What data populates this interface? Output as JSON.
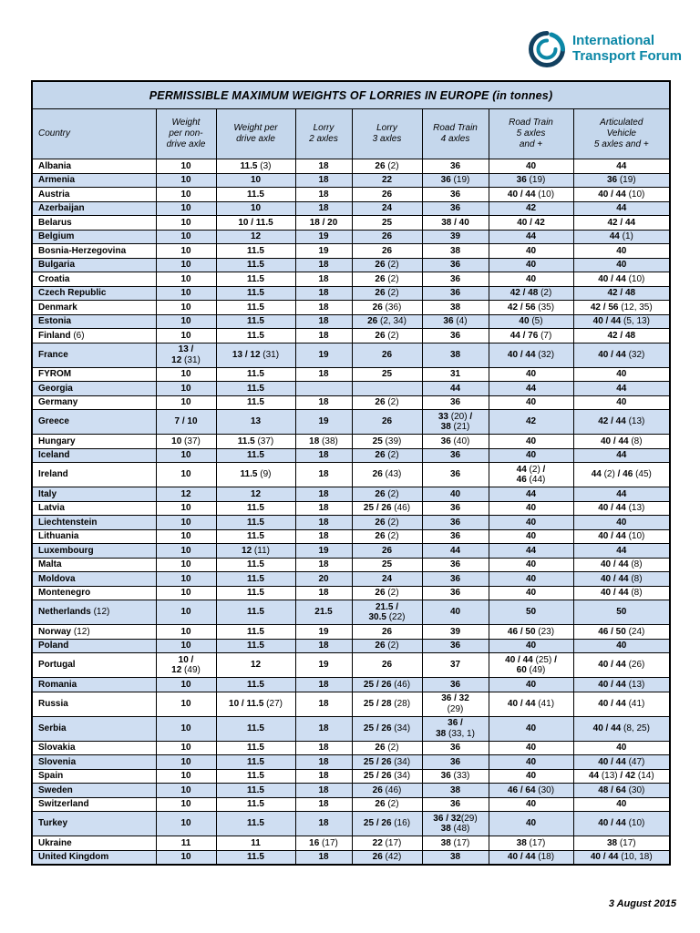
{
  "logo": {
    "line1": "International",
    "line2": "Transport Forum"
  },
  "title": "PERMISSIBLE MAXIMUM WEIGHTS OF LORRIES IN EUROPE  (in tonnes)",
  "date": "3 August 2015",
  "colors": {
    "header_blue": "#c5d7ec",
    "row_blue": "#cfdef2",
    "logo_navy": "#12405f",
    "logo_teal": "#0b87a6"
  },
  "table": {
    "headers": [
      "Country",
      "Weight\nper non-\ndrive axle",
      "Weight per\ndrive axle",
      "Lorry\n2 axles",
      "Lorry\n3 axles",
      "Road Train\n4 axles",
      "Road Train\n5 axles\nand +",
      "Articulated\nVehicle\n5 axles and +"
    ],
    "rows": [
      {
        "country": "Albania",
        "values": [
          "10",
          "11.5 (3)",
          "18",
          "26 (2)",
          "36",
          "40",
          "44"
        ]
      },
      {
        "country": "Armenia",
        "values": [
          "10",
          "10",
          "18",
          "22",
          "36 (19)",
          "36 (19)",
          "36 (19)"
        ]
      },
      {
        "country": "Austria",
        "values": [
          "10",
          "11.5",
          "18",
          "26",
          "36",
          "40 / 44 (10)",
          "40 / 44 (10)"
        ]
      },
      {
        "country": "Azerbaijan",
        "values": [
          "10",
          "10",
          "18",
          "24",
          "36",
          "42",
          "44"
        ]
      },
      {
        "country": "Belarus",
        "values": [
          "10",
          "10 / 11.5",
          "18 / 20",
          "25",
          "38 / 40",
          "40 / 42",
          "42 / 44"
        ]
      },
      {
        "country": "Belgium",
        "values": [
          "10",
          "12",
          "19",
          "26",
          "39",
          "44",
          "44 (1)"
        ]
      },
      {
        "country": "Bosnia-Herzegovina",
        "values": [
          "10",
          "11.5",
          "19",
          "26",
          "38",
          "40",
          "40"
        ]
      },
      {
        "country": "Bulgaria",
        "values": [
          "10",
          "11.5",
          "18",
          "26 (2)",
          "36",
          "40",
          "40"
        ]
      },
      {
        "country": "Croatia",
        "values": [
          "10",
          "11.5",
          "18",
          "26 (2)",
          "36",
          "40",
          "40 / 44 (10)"
        ]
      },
      {
        "country": "Czech Republic",
        "values": [
          "10",
          "11.5",
          "18",
          "26 (2)",
          "36",
          "42 / 48 (2)",
          "42 / 48"
        ]
      },
      {
        "country": "Denmark",
        "values": [
          "10",
          "11.5",
          "18",
          "26 (36)",
          "38",
          "42 / 56 (35)",
          "42 / 56 (12, 35)"
        ]
      },
      {
        "country": "Estonia",
        "values": [
          "10",
          "11.5",
          "18",
          "26 (2, 34)",
          "36 (4)",
          "40 (5)",
          "40 / 44 (5, 13)"
        ]
      },
      {
        "country": "Finland (6)",
        "values": [
          "10",
          "11.5",
          "18",
          "26 (2)",
          "36",
          "44 / 76 (7)",
          "42 / 48"
        ]
      },
      {
        "country": "France",
        "values": [
          "13 /\n12 (31)",
          "13 / 12 (31)",
          "19",
          "26",
          "38",
          "40 / 44 (32)",
          "40 / 44 (32)"
        ]
      },
      {
        "country": "FYROM",
        "values": [
          "10",
          "11.5",
          "18",
          "25",
          "31",
          "40",
          "40"
        ]
      },
      {
        "country": "Georgia",
        "values": [
          "10",
          "11.5",
          "",
          "",
          "44",
          "44",
          "44"
        ]
      },
      {
        "country": "Germany",
        "values": [
          "10",
          "11.5",
          "18",
          "26 (2)",
          "36",
          "40",
          "40"
        ]
      },
      {
        "country": "Greece",
        "values": [
          "7 / 10",
          "13",
          "19",
          "26",
          "33 (20) /\n38 (21)",
          "42",
          "42 / 44 (13)"
        ]
      },
      {
        "country": "Hungary",
        "values": [
          "10 (37)",
          "11.5 (37)",
          "18 (38)",
          "25 (39)",
          "36 (40)",
          "40",
          "40 / 44 (8)"
        ]
      },
      {
        "country": "Iceland",
        "values": [
          "10",
          "11.5",
          "18",
          "26 (2)",
          "36",
          "40",
          "44"
        ]
      },
      {
        "country": "Ireland",
        "values": [
          "10",
          "11.5 (9)",
          "18",
          "26 (43)",
          "36",
          "44 (2) /\n46 (44)",
          "44 (2) / 46 (45)"
        ]
      },
      {
        "country": "Italy",
        "values": [
          "12",
          "12",
          "18",
          "26 (2)",
          "40",
          "44",
          "44"
        ]
      },
      {
        "country": "Latvia",
        "values": [
          "10",
          "11.5",
          "18",
          "25 / 26 (46)",
          "36",
          "40",
          "40 / 44 (13)"
        ]
      },
      {
        "country": "Liechtenstein",
        "values": [
          "10",
          "11.5",
          "18",
          "26 (2)",
          "36",
          "40",
          "40"
        ]
      },
      {
        "country": "Lithuania",
        "values": [
          "10",
          "11.5",
          "18",
          "26 (2)",
          "36",
          "40",
          "40 / 44 (10)"
        ]
      },
      {
        "country": "Luxembourg",
        "values": [
          "10",
          "12 (11)",
          "19",
          "26",
          "44",
          "44",
          "44"
        ]
      },
      {
        "country": "Malta",
        "values": [
          "10",
          "11.5",
          "18",
          "25",
          "36",
          "40",
          "40 / 44 (8)"
        ]
      },
      {
        "country": "Moldova",
        "values": [
          "10",
          "11.5",
          "20",
          "24",
          "36",
          "40",
          "40 / 44 (8)"
        ]
      },
      {
        "country": "Montenegro",
        "values": [
          "10",
          "11.5",
          "18",
          "26 (2)",
          "36",
          "40",
          "40 / 44 (8)"
        ]
      },
      {
        "country": "Netherlands (12)",
        "values": [
          "10",
          "11.5",
          "21.5",
          "21.5 /\n30.5 (22)",
          "40",
          "50",
          "50"
        ]
      },
      {
        "country": "Norway (12)",
        "values": [
          "10",
          "11.5",
          "19",
          "26",
          "39",
          "46 / 50 (23)",
          "46 / 50 (24)"
        ]
      },
      {
        "country": "Poland",
        "values": [
          "10",
          "11.5",
          "18",
          "26 (2)",
          "36",
          "40",
          "40"
        ]
      },
      {
        "country": "Portugal",
        "values": [
          "10 /\n12 (49)",
          "12",
          "19",
          "26",
          "37",
          "40 / 44 (25) /\n60 (49)",
          "40 / 44 (26)"
        ]
      },
      {
        "country": "Romania",
        "values": [
          "10",
          "11.5",
          "18",
          "25 / 26 (46)",
          "36",
          "40",
          "40 / 44 (13)"
        ]
      },
      {
        "country": "Russia",
        "values": [
          "10",
          "10 / 11.5 (27)",
          "18",
          "25 / 28 (28)",
          "36 / 32\n(29)",
          "40 / 44 (41)",
          "40 / 44 (41)"
        ]
      },
      {
        "country": "Serbia",
        "values": [
          "10",
          "11.5",
          "18",
          "25 / 26 (34)",
          "36 /\n38 (33, 1)",
          "40",
          "40 / 44 (8, 25)"
        ]
      },
      {
        "country": "Slovakia",
        "values": [
          "10",
          "11.5",
          "18",
          "26 (2)",
          "36",
          "40",
          "40"
        ]
      },
      {
        "country": "Slovenia",
        "values": [
          "10",
          "11.5",
          "18",
          "25 / 26 (34)",
          "36",
          "40",
          "40 / 44 (47)"
        ]
      },
      {
        "country": "Spain",
        "values": [
          "10",
          "11.5",
          "18",
          "25 / 26 (34)",
          "36 (33)",
          "40",
          "44 (13) / 42 (14)"
        ]
      },
      {
        "country": "Sweden",
        "values": [
          "10",
          "11.5",
          "18",
          "26 (46)",
          "38",
          "46 / 64 (30)",
          "48 / 64 (30)"
        ]
      },
      {
        "country": "Switzerland",
        "values": [
          "10",
          "11.5",
          "18",
          "26 (2)",
          "36",
          "40",
          "40"
        ]
      },
      {
        "country": "Turkey",
        "values": [
          "10",
          "11.5",
          "18",
          "25 / 26 (16)",
          "36 / 32(29)\n38 (48)",
          "40",
          "40 / 44 (10)"
        ]
      },
      {
        "country": "Ukraine",
        "values": [
          "11",
          "11",
          "16 (17)",
          "22 (17)",
          "38 (17)",
          "38 (17)",
          "38 (17)"
        ]
      },
      {
        "country": "United Kingdom",
        "values": [
          "10",
          "11.5",
          "18",
          "26 (42)",
          "38",
          "40 / 44 (18)",
          "40 / 44 (10, 18)"
        ]
      }
    ]
  }
}
